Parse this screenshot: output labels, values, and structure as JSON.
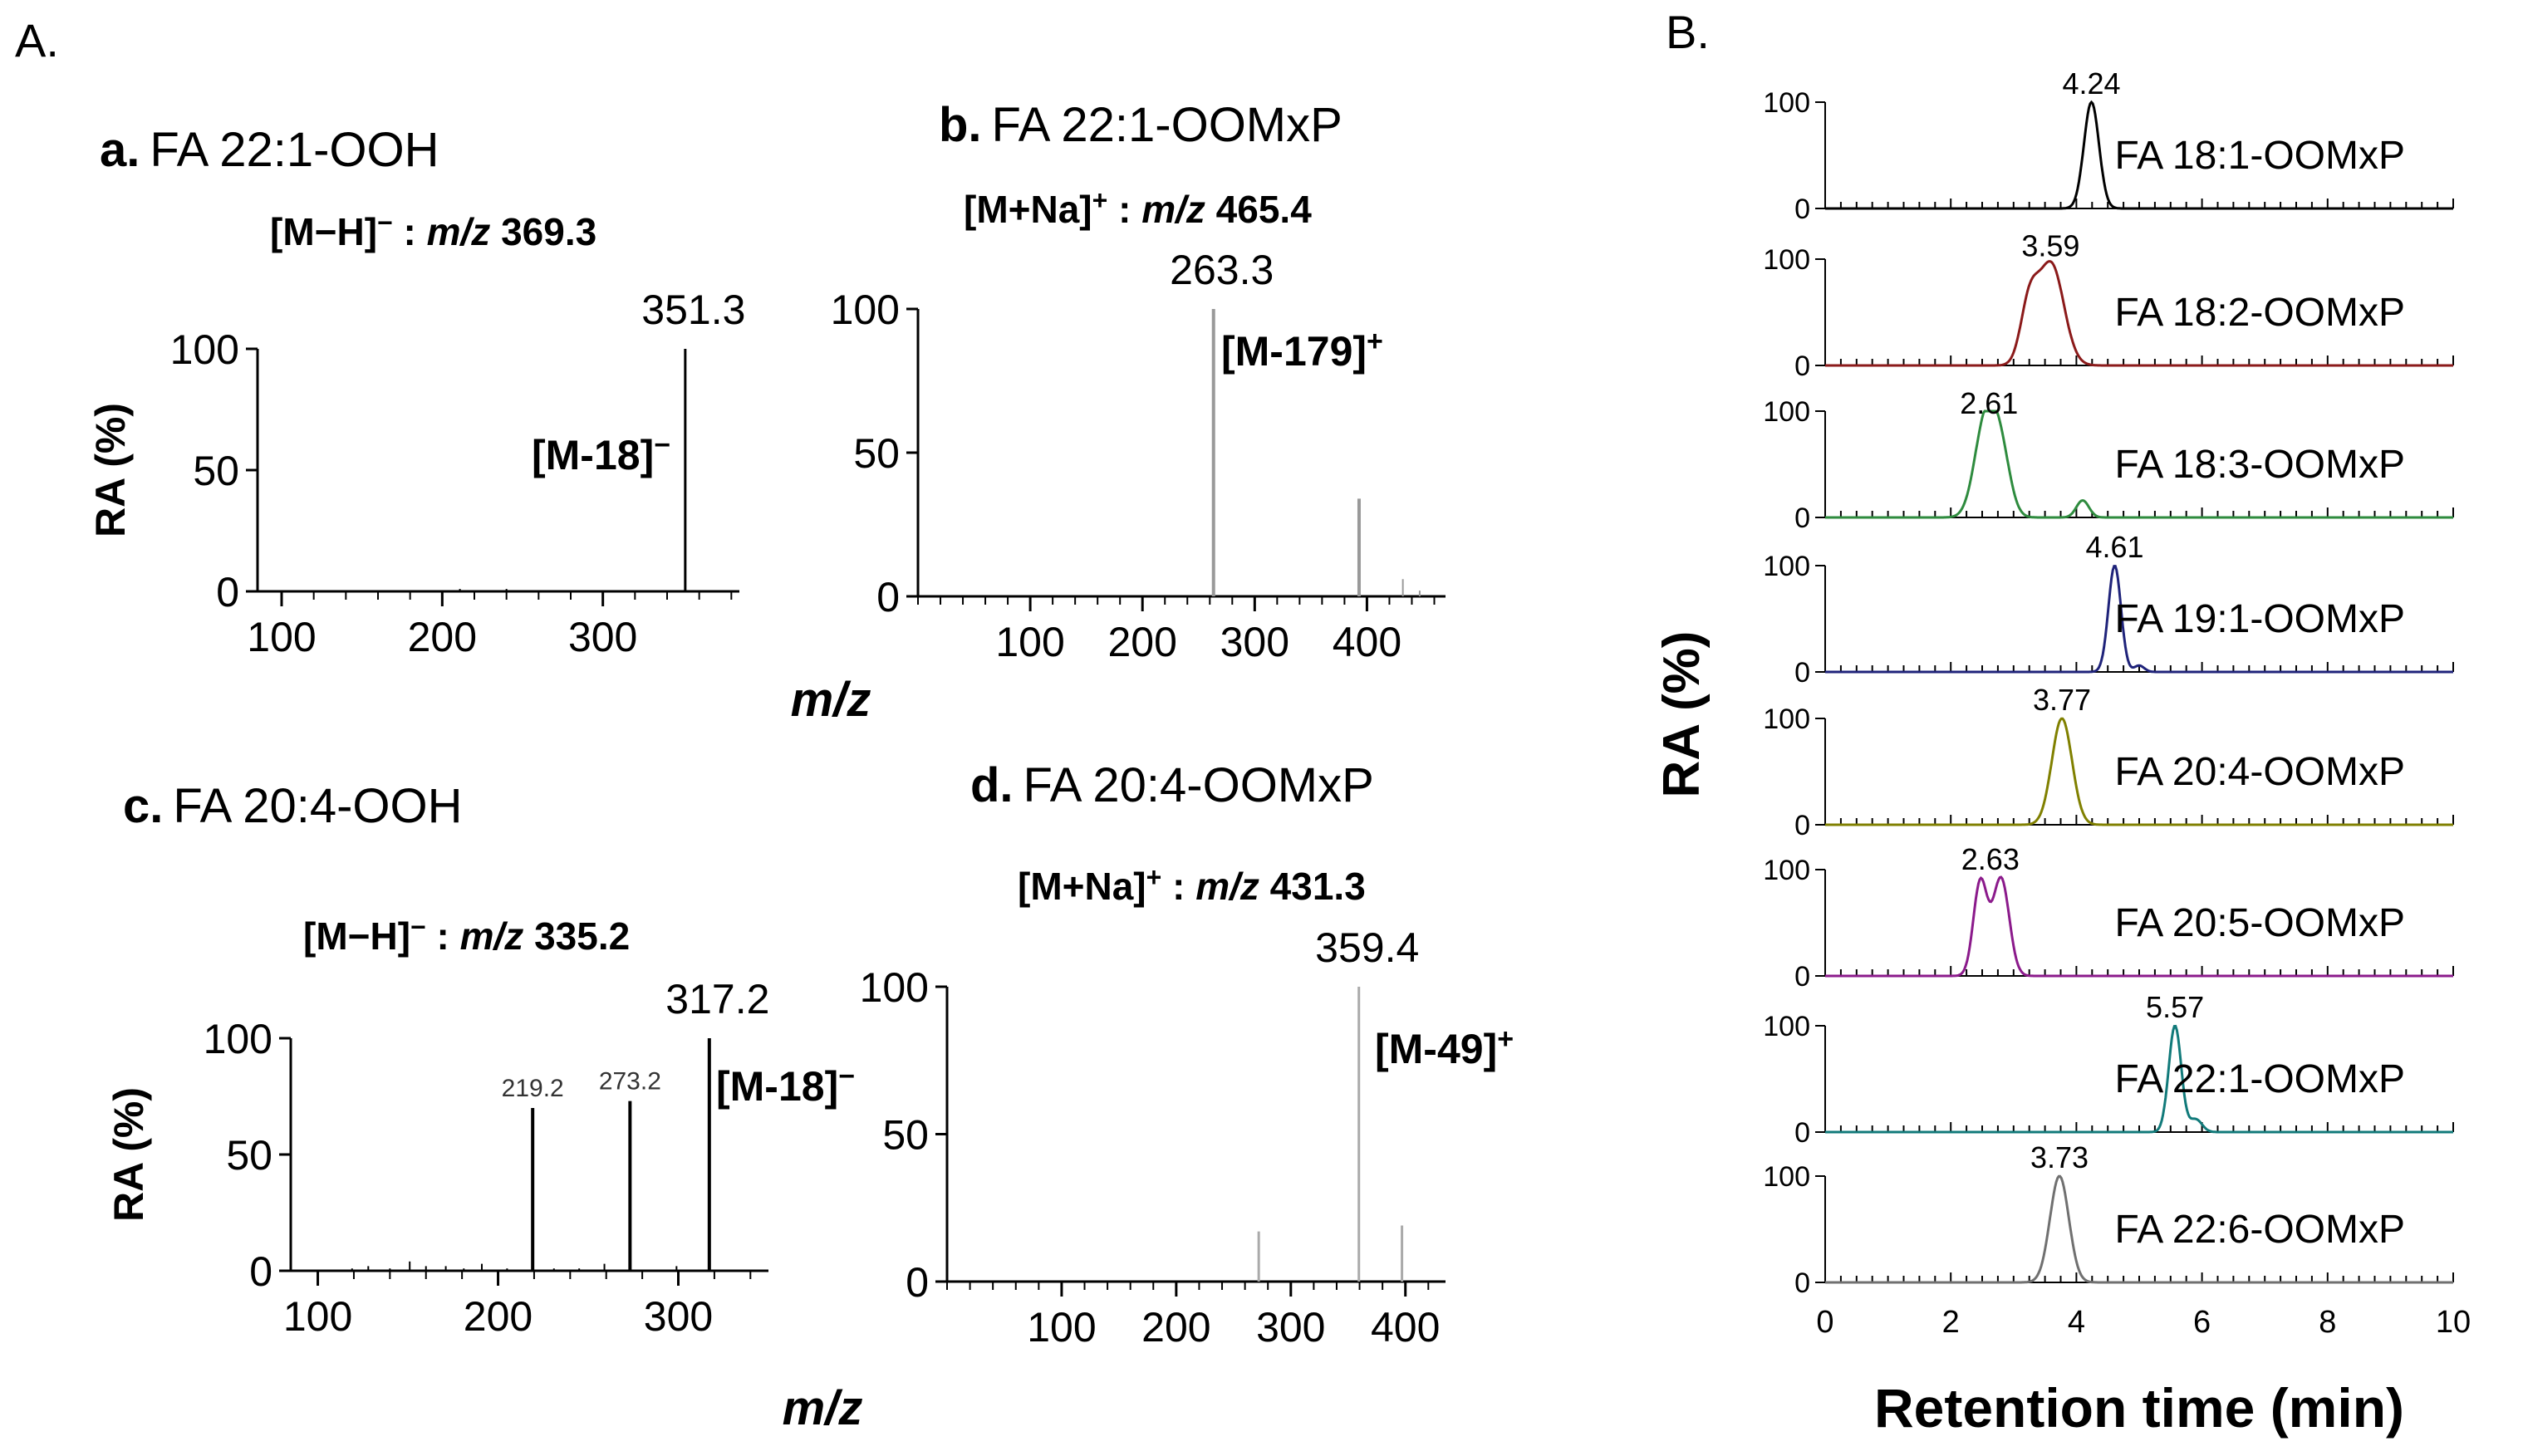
{
  "panel_labels": {
    "A": "A.",
    "B": "B."
  },
  "shared": {
    "mz_label": "m/z",
    "ra_label": "RA (%)"
  },
  "chart_data": [
    {
      "id": "a",
      "type": "bar",
      "label": "a.",
      "title": "FA 22:1-OOH",
      "subtitle": {
        "ion": "[M−H]",
        "charge": "−",
        "sep": " : ",
        "mz": "m/z",
        "value": " 369.3"
      },
      "xlabel": "m/z",
      "ylabel": "RA (%)",
      "xlim": [
        85,
        385
      ],
      "ylim": [
        0,
        100
      ],
      "xticks": [
        100,
        200,
        300
      ],
      "yticks": [
        0,
        50,
        100
      ],
      "peaks": [
        {
          "x": 211,
          "y": 1
        },
        {
          "x": 240,
          "y": 1
        },
        {
          "x": 351.3,
          "y": 100,
          "label": "351.3"
        }
      ],
      "annotation": {
        "text": "[M-18]",
        "sup": "−"
      }
    },
    {
      "id": "b",
      "type": "bar",
      "label": "b.",
      "title": "FA 22:1-OOMxP",
      "subtitle": {
        "ion": "[M+Na]",
        "charge": "+",
        "sep": " : ",
        "mz": "m/z",
        "value": " 465.4"
      },
      "xlabel": "m/z",
      "ylabel": "RA (%)",
      "xlim": [
        0,
        470
      ],
      "ylim": [
        0,
        100
      ],
      "xticks": [
        100,
        200,
        300,
        400
      ],
      "yticks": [
        0,
        50,
        100
      ],
      "peaks": [
        {
          "x": 263.3,
          "y": 100,
          "label": "263.3"
        },
        {
          "x": 393,
          "y": 34
        },
        {
          "x": 432,
          "y": 6
        },
        {
          "x": 447,
          "y": 2
        }
      ],
      "annotation": {
        "text": "[M-179]",
        "sup": "+"
      }
    },
    {
      "id": "c",
      "type": "bar",
      "label": "c.",
      "title": "FA 20:4-OOH",
      "subtitle": {
        "ion": "[M−H]",
        "charge": "−",
        "sep": " : ",
        "mz": "m/z",
        "value": " 335.2"
      },
      "xlabel": "m/z",
      "ylabel": "RA (%)",
      "xlim": [
        85,
        350
      ],
      "ylim": [
        0,
        100
      ],
      "xticks": [
        100,
        200,
        300
      ],
      "yticks": [
        0,
        50,
        100
      ],
      "peaks": [
        {
          "x": 119,
          "y": 1
        },
        {
          "x": 128,
          "y": 2
        },
        {
          "x": 140,
          "y": 1
        },
        {
          "x": 151,
          "y": 4
        },
        {
          "x": 160,
          "y": 2
        },
        {
          "x": 171,
          "y": 2
        },
        {
          "x": 181,
          "y": 1
        },
        {
          "x": 191,
          "y": 3
        },
        {
          "x": 205,
          "y": 1
        },
        {
          "x": 219.2,
          "y": 70,
          "label": "219.2"
        },
        {
          "x": 231,
          "y": 1
        },
        {
          "x": 245,
          "y": 1
        },
        {
          "x": 259,
          "y": 3
        },
        {
          "x": 273.2,
          "y": 73,
          "label": "273.2"
        },
        {
          "x": 299,
          "y": 2
        },
        {
          "x": 317.2,
          "y": 100,
          "label": "317.2"
        }
      ],
      "annotation": {
        "text": "[M-18]",
        "sup": "−"
      }
    },
    {
      "id": "d",
      "type": "bar",
      "label": "d.",
      "title": "FA 20:4-OOMxP",
      "subtitle": {
        "ion": "[M+Na]",
        "charge": "+",
        "sep": " : ",
        "mz": "m/z",
        "value": " 431.3"
      },
      "xlabel": "m/z",
      "ylabel": "RA (%)",
      "xlim": [
        0,
        435
      ],
      "ylim": [
        0,
        100
      ],
      "xticks": [
        100,
        200,
        300,
        400
      ],
      "yticks": [
        0,
        50,
        100
      ],
      "peaks": [
        {
          "x": 272,
          "y": 17
        },
        {
          "x": 359.4,
          "y": 100,
          "label": "359.4"
        },
        {
          "x": 397,
          "y": 19
        }
      ],
      "annotation": {
        "text": "[M-49]",
        "sup": "+"
      }
    },
    {
      "id": "B",
      "type": "line",
      "xlabel": "Retention time (min)",
      "ylabel": "RA (%)",
      "xlim": [
        0,
        10
      ],
      "ylim": [
        0,
        100
      ],
      "xticks": [
        0,
        2,
        4,
        6,
        8,
        10
      ],
      "yticks": [
        0,
        100
      ],
      "series": [
        {
          "name": "FA 18:1-OOMxP",
          "color": "#000000",
          "rt": 4.24,
          "rt_label": "4.24",
          "components": [
            {
              "mu": 4.24,
              "sigma": 0.12,
              "h": 100
            }
          ]
        },
        {
          "name": "FA 18:2-OOMxP",
          "color": "#8b1a1a",
          "rt": 3.59,
          "rt_label": "3.59",
          "components": [
            {
              "mu": 3.25,
              "sigma": 0.14,
              "h": 55
            },
            {
              "mu": 3.6,
              "sigma": 0.2,
              "h": 95
            }
          ]
        },
        {
          "name": "FA 18:3-OOMxP",
          "color": "#2e8b3e",
          "rt": 2.61,
          "rt_label": "2.61",
          "components": [
            {
              "mu": 2.55,
              "sigma": 0.17,
              "h": 90
            },
            {
              "mu": 2.8,
              "sigma": 0.15,
              "h": 55
            },
            {
              "mu": 4.1,
              "sigma": 0.1,
              "h": 16
            }
          ]
        },
        {
          "name": "FA 19:1-OOMxP",
          "color": "#1f237a",
          "rt": 4.61,
          "rt_label": "4.61",
          "components": [
            {
              "mu": 4.61,
              "sigma": 0.1,
              "h": 100
            },
            {
              "mu": 5.0,
              "sigma": 0.08,
              "h": 6
            }
          ]
        },
        {
          "name": "FA 20:4-OOMxP",
          "color": "#808000",
          "rt": 3.77,
          "rt_label": "3.77",
          "components": [
            {
              "mu": 3.77,
              "sigma": 0.16,
              "h": 100
            }
          ]
        },
        {
          "name": "FA 20:5-OOMxP",
          "color": "#8b1a8b",
          "rt": 2.63,
          "rt_label": "2.63",
          "components": [
            {
              "mu": 2.47,
              "sigma": 0.11,
              "h": 88
            },
            {
              "mu": 2.8,
              "sigma": 0.13,
              "h": 92
            }
          ]
        },
        {
          "name": "FA 22:1-OOMxP",
          "color": "#117a7a",
          "rt": 5.57,
          "rt_label": "5.57",
          "components": [
            {
              "mu": 5.57,
              "sigma": 0.1,
              "h": 100
            },
            {
              "mu": 5.9,
              "sigma": 0.1,
              "h": 12
            }
          ]
        },
        {
          "name": "FA 22:6-OOMxP",
          "color": "#707070",
          "rt": 3.73,
          "rt_label": "3.73",
          "components": [
            {
              "mu": 3.73,
              "sigma": 0.15,
              "h": 100
            }
          ]
        }
      ]
    }
  ]
}
